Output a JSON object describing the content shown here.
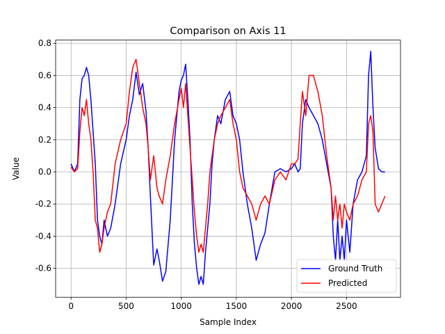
{
  "chart_data": {
    "type": "line",
    "title": "Comparison on Axis 11",
    "xlabel": "Sample Index",
    "ylabel": "Value",
    "xlim": [
      -140,
      2990
    ],
    "ylim": [
      -0.78,
      0.82
    ],
    "x_ticks": [
      0,
      500,
      1000,
      1500,
      2000,
      2500
    ],
    "y_ticks": [
      -0.6,
      -0.4,
      -0.2,
      0.0,
      0.2,
      0.4,
      0.6,
      0.8
    ],
    "grid": true,
    "legend_position": "lower-right",
    "series": [
      {
        "name": "Ground Truth",
        "color": "#0000ff",
        "x": [
          0,
          30,
          60,
          80,
          100,
          120,
          140,
          160,
          180,
          200,
          220,
          240,
          260,
          280,
          300,
          330,
          360,
          400,
          450,
          500,
          530,
          560,
          590,
          620,
          650,
          680,
          700,
          720,
          750,
          780,
          800,
          830,
          860,
          900,
          940,
          980,
          1000,
          1020,
          1040,
          1060,
          1080,
          1100,
          1120,
          1140,
          1160,
          1180,
          1200,
          1220,
          1240,
          1260,
          1280,
          1300,
          1330,
          1360,
          1400,
          1440,
          1470,
          1500,
          1530,
          1560,
          1600,
          1640,
          1680,
          1720,
          1760,
          1800,
          1850,
          1900,
          1950,
          2000,
          2030,
          2060,
          2080,
          2100,
          2130,
          2160,
          2200,
          2240,
          2280,
          2320,
          2360,
          2380,
          2400,
          2420,
          2440,
          2460,
          2480,
          2500,
          2530,
          2560,
          2600,
          2640,
          2680,
          2700,
          2720,
          2740,
          2760,
          2790,
          2820,
          2850
        ],
        "y": [
          0.05,
          0.0,
          0.05,
          0.45,
          0.58,
          0.6,
          0.65,
          0.6,
          0.45,
          0.25,
          0.05,
          -0.3,
          -0.4,
          -0.45,
          -0.3,
          -0.4,
          -0.35,
          -0.2,
          0.05,
          0.2,
          0.35,
          0.45,
          0.62,
          0.48,
          0.55,
          0.38,
          0.15,
          -0.15,
          -0.58,
          -0.48,
          -0.55,
          -0.68,
          -0.62,
          -0.3,
          0.2,
          0.5,
          0.57,
          0.6,
          0.67,
          0.45,
          0.2,
          -0.2,
          -0.45,
          -0.6,
          -0.7,
          -0.65,
          -0.7,
          -0.5,
          -0.35,
          -0.2,
          0.05,
          0.2,
          0.35,
          0.3,
          0.45,
          0.5,
          0.35,
          0.3,
          0.2,
          0.0,
          -0.2,
          -0.35,
          -0.55,
          -0.45,
          -0.38,
          -0.2,
          0.0,
          0.02,
          0.0,
          0.02,
          0.05,
          0.0,
          0.02,
          0.3,
          0.45,
          0.4,
          0.35,
          0.3,
          0.2,
          0.05,
          -0.1,
          -0.4,
          -0.55,
          -0.3,
          -0.55,
          -0.4,
          -0.55,
          -0.3,
          -0.5,
          -0.2,
          -0.05,
          0.0,
          0.1,
          0.6,
          0.75,
          0.4,
          0.15,
          0.02,
          0.0,
          0.0
        ]
      },
      {
        "name": "Predicted",
        "color": "#ff0000",
        "x": [
          0,
          30,
          60,
          80,
          100,
          120,
          140,
          160,
          180,
          200,
          220,
          240,
          260,
          280,
          300,
          330,
          360,
          400,
          450,
          500,
          530,
          560,
          590,
          620,
          650,
          680,
          700,
          720,
          750,
          780,
          800,
          830,
          860,
          900,
          940,
          980,
          1000,
          1020,
          1040,
          1060,
          1080,
          1100,
          1120,
          1140,
          1160,
          1180,
          1200,
          1220,
          1240,
          1260,
          1280,
          1300,
          1330,
          1360,
          1400,
          1440,
          1470,
          1500,
          1530,
          1560,
          1600,
          1640,
          1680,
          1720,
          1760,
          1800,
          1850,
          1900,
          1950,
          2000,
          2030,
          2060,
          2080,
          2100,
          2130,
          2160,
          2200,
          2240,
          2280,
          2320,
          2360,
          2380,
          2400,
          2420,
          2440,
          2460,
          2480,
          2500,
          2530,
          2560,
          2600,
          2640,
          2680,
          2700,
          2720,
          2740,
          2760,
          2790,
          2820,
          2850
        ],
        "y": [
          0.03,
          0.0,
          0.02,
          0.25,
          0.4,
          0.35,
          0.45,
          0.3,
          0.2,
          0.0,
          -0.3,
          -0.35,
          -0.5,
          -0.45,
          -0.35,
          -0.25,
          -0.2,
          0.05,
          0.2,
          0.3,
          0.5,
          0.65,
          0.7,
          0.55,
          0.4,
          0.3,
          0.15,
          -0.05,
          0.1,
          -0.1,
          -0.15,
          -0.2,
          -0.05,
          0.1,
          0.3,
          0.45,
          0.52,
          0.4,
          0.55,
          0.35,
          0.15,
          -0.05,
          -0.25,
          -0.4,
          -0.5,
          -0.45,
          -0.5,
          -0.35,
          -0.2,
          0.0,
          0.1,
          0.2,
          0.3,
          0.35,
          0.4,
          0.45,
          0.3,
          0.2,
          0.0,
          -0.1,
          -0.15,
          -0.2,
          -0.3,
          -0.2,
          -0.15,
          -0.2,
          -0.05,
          0.0,
          -0.05,
          0.05,
          0.05,
          0.08,
          0.3,
          0.5,
          0.35,
          0.6,
          0.6,
          0.5,
          0.35,
          0.1,
          -0.1,
          -0.3,
          -0.15,
          -0.3,
          -0.2,
          -0.35,
          -0.2,
          -0.25,
          -0.3,
          -0.2,
          -0.15,
          -0.05,
          0.0,
          0.3,
          0.35,
          0.25,
          -0.2,
          -0.25,
          -0.2,
          -0.15
        ]
      }
    ]
  }
}
